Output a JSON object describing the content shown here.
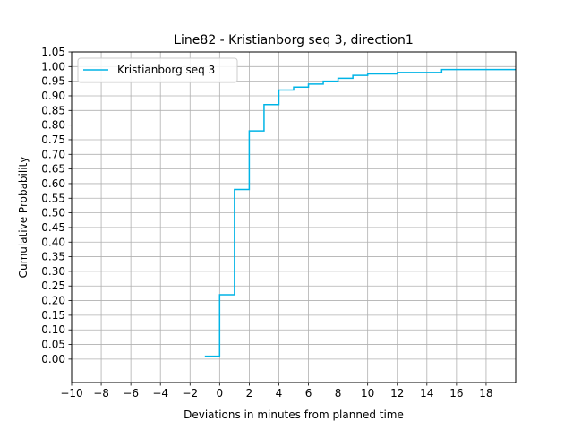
{
  "chart_data": {
    "type": "line",
    "title": "Line82 - Kristianborg seq 3, direction1",
    "xlabel": "Deviations in minutes from planned time",
    "ylabel": "Cumulative Probability",
    "xlim": [
      -10,
      20
    ],
    "ylim": [
      -0.08,
      1.05
    ],
    "xticks": [
      -10,
      -8,
      -6,
      -4,
      -2,
      0,
      2,
      4,
      6,
      8,
      10,
      12,
      14,
      16,
      18
    ],
    "xtick_labels": [
      "−10",
      "−8",
      "−6",
      "−4",
      "−2",
      "0",
      "2",
      "4",
      "6",
      "8",
      "10",
      "12",
      "14",
      "16",
      "18"
    ],
    "yticks": [
      0,
      0.05,
      0.1,
      0.15,
      0.2,
      0.25,
      0.3,
      0.35,
      0.4,
      0.45,
      0.5,
      0.55,
      0.6,
      0.65,
      0.7,
      0.75,
      0.8,
      0.85,
      0.9,
      0.95,
      1.0,
      1.05
    ],
    "ytick_labels": [
      "0.00",
      "0.05",
      "0.10",
      "0.15",
      "0.20",
      "0.25",
      "0.30",
      "0.35",
      "0.40",
      "0.45",
      "0.50",
      "0.55",
      "0.60",
      "0.65",
      "0.70",
      "0.75",
      "0.80",
      "0.85",
      "0.90",
      "0.95",
      "1.00",
      "1.05"
    ],
    "grid": true,
    "legend_position": "top-left",
    "step": "post",
    "series": [
      {
        "name": "Kristianborg seq 3",
        "color": "#00b4e6",
        "x": [
          -1,
          0,
          1,
          2,
          3,
          4,
          5,
          6,
          7,
          8,
          9,
          10,
          12,
          15,
          20
        ],
        "y": [
          0.01,
          0.22,
          0.58,
          0.78,
          0.87,
          0.92,
          0.93,
          0.94,
          0.95,
          0.96,
          0.97,
          0.975,
          0.98,
          0.99,
          0.99
        ]
      }
    ]
  }
}
